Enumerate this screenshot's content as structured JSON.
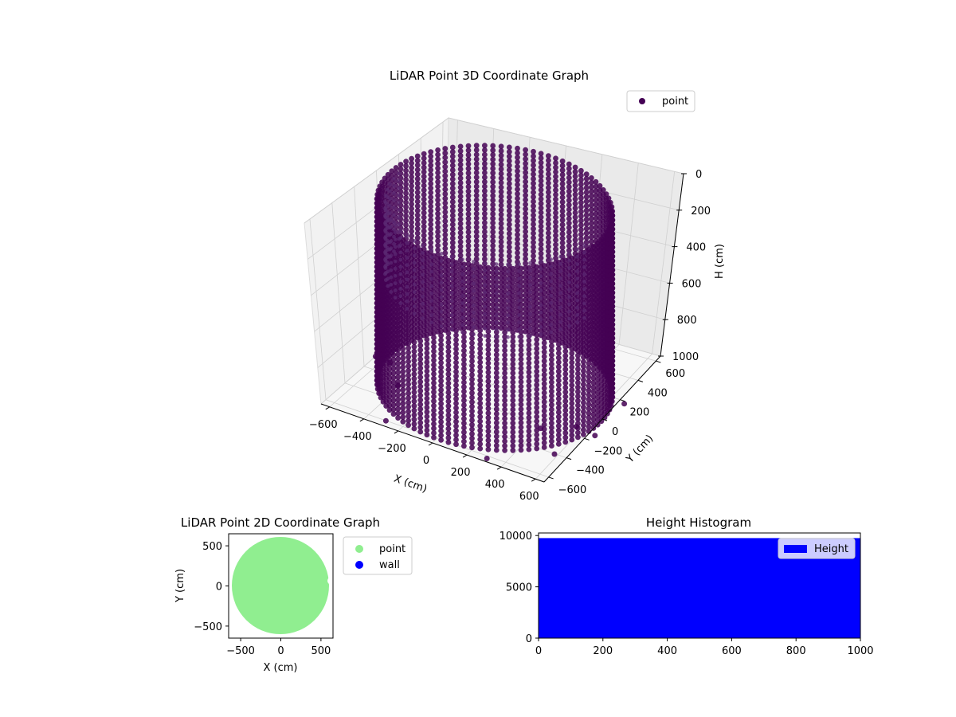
{
  "chart_data": [
    {
      "type": "scatter",
      "projection": "3d",
      "title": "LiDAR Point 3D Coordinate Graph",
      "xlabel": "X (cm)",
      "ylabel": "Y (cm)",
      "zlabel": "H (cm)",
      "xlim": [
        -650,
        650
      ],
      "ylim": [
        -650,
        650
      ],
      "zlim": [
        1000,
        0
      ],
      "x_ticks": [
        "−600",
        "−400",
        "−200",
        "0",
        "200",
        "400",
        "600"
      ],
      "y_ticks": [
        "−600",
        "−400",
        "−200",
        "0",
        "200",
        "400",
        "600"
      ],
      "z_ticks": [
        "0",
        "200",
        "400",
        "600",
        "800",
        "1000"
      ],
      "z_tick_values": [
        0,
        200,
        400,
        600,
        800,
        1000
      ],
      "shape": "cylinder",
      "cylinder_radius": 600,
      "height_range": [
        0,
        1000
      ],
      "series": [
        {
          "name": "point",
          "color": "#440154"
        }
      ],
      "stray_points": [
        {
          "x": -560,
          "y": -90,
          "h": 1000
        },
        {
          "x": -420,
          "y": -260,
          "h": 1000
        },
        {
          "x": -300,
          "y": -600,
          "h": 1000
        },
        {
          "x": -650,
          "y": -80,
          "h": 1000
        },
        {
          "x": 300,
          "y": -620,
          "h": 1000
        },
        {
          "x": 380,
          "y": -200,
          "h": 1000
        },
        {
          "x": 520,
          "y": -80,
          "h": 1000
        },
        {
          "x": 610,
          "y": 260,
          "h": 1000
        },
        {
          "x": 560,
          "y": -380,
          "h": 1000
        },
        {
          "x": 640,
          "y": -100,
          "h": 1000
        }
      ],
      "legend": {
        "entries": [
          "point"
        ],
        "loc": "upper right"
      },
      "grid": true
    },
    {
      "type": "scatter",
      "title": "LiDAR Point 2D Coordinate Graph",
      "xlabel": "X (cm)",
      "ylabel": "Y (cm)",
      "xlim": [
        -650,
        650
      ],
      "ylim": [
        -650,
        650
      ],
      "x_ticks": [
        -500,
        0,
        500
      ],
      "y_ticks": [
        -500,
        0,
        500
      ],
      "aspect": "equal",
      "circle_radius": 600,
      "series": [
        {
          "name": "point",
          "color": "#90ee90"
        },
        {
          "name": "wall",
          "color": "#0000ff"
        }
      ],
      "legend": {
        "entries": [
          "point",
          "wall"
        ],
        "loc": "outside right"
      }
    },
    {
      "type": "bar",
      "title": "Height Histogram",
      "xlim": [
        0,
        1000
      ],
      "ylim": [
        0,
        10250
      ],
      "x_ticks": [
        0,
        200,
        400,
        600,
        800,
        1000
      ],
      "y_ticks": [
        0,
        5000,
        10000
      ],
      "bins": [
        {
          "x0": 0,
          "x1": 1000,
          "count": 9750
        }
      ],
      "series": [
        {
          "name": "Height",
          "color": "#0000ff"
        }
      ],
      "legend": {
        "entries": [
          "Height"
        ],
        "loc": "upper right"
      }
    }
  ]
}
